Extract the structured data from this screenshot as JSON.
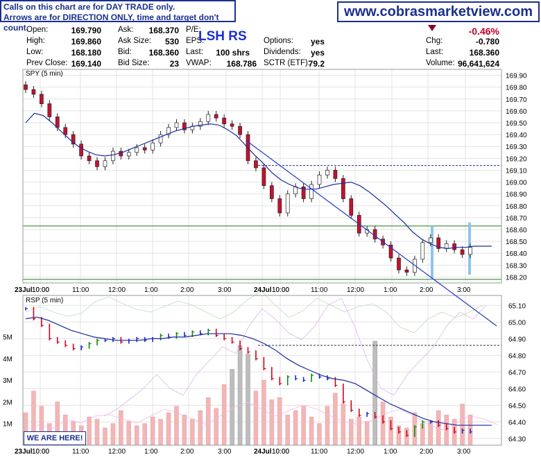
{
  "notice": {
    "line1": "Calls on this chart are for DAY TRADE only.",
    "line2": "Arrows are for DIRECTION ONLY, time and target don't count."
  },
  "site": "www.cobrasmarketview.com",
  "quote": {
    "symbol_label": "LSH RS",
    "open_label": "Open:",
    "open": "169.790",
    "high_label": "High:",
    "high": "169.860",
    "low_label": "Low:",
    "low": "168.180",
    "prev_label": "Prev Close:",
    "prev": "169.140",
    "ask_label": "Ask:",
    "ask": "168.370",
    "asksize_label": "Ask Size:",
    "asksize": "530",
    "bid_label": "Bid:",
    "bid": "168.360",
    "bidsize_label": "Bid Size:",
    "bidsize": "23",
    "pe_label": "P/E:",
    "eps_label": "EPS:",
    "last_label": "Last:",
    "last_shares": "100 shrs",
    "vwap_label": "VWAP:",
    "vwap": "168.786",
    "options_label": "Options:",
    "options": "yes",
    "dividends_label": "Dividends:",
    "dividends": "yes",
    "sctr_label": "SCTR (ETF):",
    "sctr": "79.2",
    "pct_change": "-0.46%",
    "chg_label": "Chg:",
    "chg": "-0.780",
    "last_price_label": "Last:",
    "last_price": "168.360",
    "volume_label": "Volume:",
    "volume": "96,641,624"
  },
  "banner": {
    "we_are_here": "WE ARE HERE!"
  },
  "colors": {
    "up": "#0a8a0a",
    "down": "#d0001c",
    "ma": "#1a2aa0",
    "trend": "#2436c8",
    "volume": "#f2b6b6"
  },
  "chart_data": [
    {
      "type": "candlestick",
      "title": "SPY (5 min)",
      "ylim": [
        168.15,
        169.95
      ],
      "y_ticks": [
        168.2,
        168.3,
        168.4,
        168.5,
        168.6,
        168.7,
        168.8,
        168.9,
        169.0,
        169.1,
        169.2,
        169.3,
        169.4,
        169.5,
        169.6,
        169.7,
        169.8,
        169.9
      ],
      "x_ticks": [
        "23Jul",
        "10:00",
        "11:00",
        "12:00",
        "1:00",
        "2:00",
        "3:00",
        "24Jul",
        "10:00",
        "11:00",
        "12:00",
        "1:00",
        "2:00",
        "3:00"
      ],
      "close_series": [
        169.78,
        169.74,
        169.66,
        169.55,
        169.46,
        169.4,
        169.32,
        169.22,
        169.18,
        169.13,
        169.18,
        169.26,
        169.22,
        169.25,
        169.29,
        169.27,
        169.33,
        169.4,
        169.46,
        169.5,
        169.44,
        169.47,
        169.51,
        169.57,
        169.54,
        169.49,
        169.47,
        169.4,
        169.18,
        169.12,
        168.97,
        168.86,
        168.74,
        168.9,
        168.96,
        168.86,
        168.98,
        169.06,
        169.1,
        169.03,
        168.86,
        168.72,
        168.57,
        168.6,
        168.52,
        168.47,
        168.36,
        168.26,
        168.24,
        168.35,
        168.49,
        168.53,
        168.44,
        168.48,
        168.43,
        168.39,
        168.45
      ],
      "moving_average": [
        169.5,
        169.58,
        169.56,
        169.5,
        169.43,
        169.36,
        169.3,
        169.26,
        169.23,
        169.22,
        169.23,
        169.25,
        169.28,
        169.31,
        169.34,
        169.37,
        169.4,
        169.43,
        169.45,
        169.47,
        169.48,
        169.49,
        169.48,
        169.44,
        169.39,
        169.31,
        169.23,
        169.16,
        169.08,
        169.02,
        168.98,
        168.95,
        168.94,
        168.94,
        168.96,
        168.98,
        168.99,
        169.0,
        168.97,
        168.92,
        168.86,
        168.8,
        168.73,
        168.66,
        168.58,
        168.52,
        168.48,
        168.45,
        168.44,
        168.45,
        168.45,
        168.46,
        168.46,
        168.46
      ],
      "reference_lines": [
        169.14,
        168.63,
        168.18
      ],
      "trendline": [
        [
          169.35,
          168.95
        ],
        [
          168.6,
          168.08
        ]
      ]
    },
    {
      "type": "line",
      "title": "RSP (5 min)",
      "ylim": [
        64.26,
        65.16
      ],
      "y_ticks": [
        64.3,
        64.4,
        64.5,
        64.6,
        64.7,
        64.8,
        64.9,
        65.0,
        65.1
      ],
      "volume_ticks": [
        "1M",
        "2M",
        "3M",
        "4M",
        "5M"
      ],
      "close_series": [
        65.08,
        65.02,
        64.98,
        64.9,
        64.88,
        64.86,
        64.84,
        64.85,
        64.87,
        64.89,
        64.89,
        64.9,
        64.88,
        64.89,
        64.9,
        64.89,
        64.9,
        64.92,
        64.91,
        64.93,
        64.92,
        64.94,
        64.93,
        64.95,
        64.92,
        64.9,
        64.88,
        64.84,
        64.82,
        64.78,
        64.72,
        64.66,
        64.63,
        64.67,
        64.66,
        64.65,
        64.68,
        64.67,
        64.66,
        64.62,
        64.52,
        64.47,
        64.44,
        64.45,
        64.43,
        64.4,
        64.36,
        64.34,
        64.32,
        64.37,
        64.4,
        64.4,
        64.38,
        64.36,
        64.34,
        64.35,
        64.34
      ],
      "moving_average": [
        65.02,
        65.03,
        65.01,
        64.98,
        64.95,
        64.93,
        64.91,
        64.9,
        64.89,
        64.89,
        64.89,
        64.9,
        64.9,
        64.91,
        64.91,
        64.92,
        64.93,
        64.93,
        64.93,
        64.92,
        64.9,
        64.87,
        64.83,
        64.78,
        64.74,
        64.71,
        64.68,
        64.66,
        64.65,
        64.63,
        64.59,
        64.55,
        64.51,
        64.48,
        64.45,
        64.42,
        64.4,
        64.39,
        64.38,
        64.38,
        64.38,
        64.38
      ],
      "volume_millions": [
        1.5,
        2.5,
        1.8,
        1.0,
        2.0,
        1.4,
        1.1,
        0.9,
        1.3,
        1.2,
        0.8,
        1.0,
        1.6,
        1.1,
        0.9,
        1.0,
        1.3,
        1.2,
        1.5,
        1.8,
        1.4,
        1.2,
        1.6,
        2.2,
        1.7,
        2.8,
        3.5,
        4.6,
        4.2,
        2.5,
        3.0,
        2.1,
        2.2,
        1.4,
        1.6,
        1.8,
        1.3,
        1.0,
        1.8,
        2.4,
        1.9,
        1.2,
        1.3,
        1.1,
        4.8,
        2.0,
        1.3,
        0.9,
        0.8,
        1.5,
        1.0,
        1.1,
        1.6,
        1.4,
        1.2,
        1.9,
        1.4
      ],
      "reference_lines": [
        64.86
      ]
    }
  ]
}
